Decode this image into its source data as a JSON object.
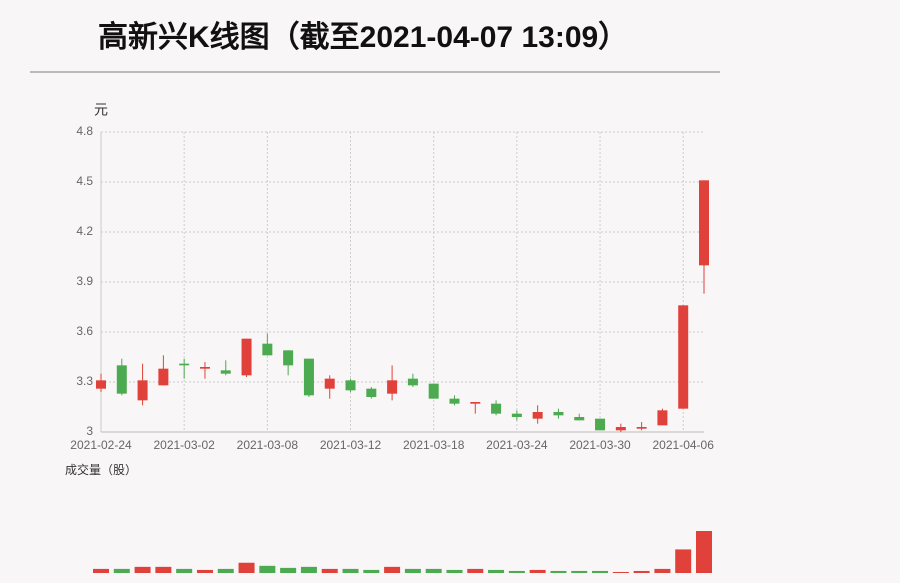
{
  "chart_data": {
    "type": "candlestick",
    "title": "高新兴K线图（截至2021-04-07 13:09）",
    "y_label": "元",
    "volume_label": "成交量（股）",
    "categories": [
      "2021-02-24",
      null,
      null,
      null,
      "2021-03-02",
      null,
      null,
      null,
      "2021-03-08",
      null,
      null,
      null,
      "2021-03-12",
      null,
      null,
      null,
      "2021-03-18",
      null,
      null,
      null,
      "2021-03-24",
      null,
      null,
      null,
      "2021-03-30",
      null,
      null,
      null,
      "2021-04-06",
      null
    ],
    "open": [
      3.26,
      3.4,
      3.19,
      3.28,
      3.41,
      3.38,
      3.37,
      3.34,
      3.53,
      3.49,
      3.44,
      3.26,
      3.31,
      3.26,
      3.23,
      3.32,
      3.29,
      3.2,
      3.17,
      3.17,
      3.11,
      3.08,
      3.12,
      3.09,
      3.08,
      3.01,
      3.02,
      3.04,
      3.14,
      4.0
    ],
    "high": [
      3.35,
      3.44,
      3.41,
      3.46,
      3.44,
      3.42,
      3.43,
      3.56,
      3.59,
      3.49,
      3.44,
      3.34,
      3.32,
      3.27,
      3.4,
      3.35,
      3.29,
      3.22,
      3.18,
      3.19,
      3.13,
      3.16,
      3.14,
      3.11,
      3.08,
      3.05,
      3.06,
      3.14,
      3.76,
      4.51
    ],
    "low": [
      3.24,
      3.22,
      3.16,
      3.28,
      3.32,
      3.32,
      3.34,
      3.33,
      3.46,
      3.34,
      3.21,
      3.2,
      3.24,
      3.2,
      3.19,
      3.27,
      3.2,
      3.16,
      3.11,
      3.1,
      3.07,
      3.05,
      3.08,
      3.07,
      3.01,
      3.0,
      3.01,
      3.04,
      3.14,
      3.83
    ],
    "close": [
      3.31,
      3.23,
      3.31,
      3.38,
      3.4,
      3.39,
      3.35,
      3.56,
      3.46,
      3.4,
      3.22,
      3.32,
      3.25,
      3.21,
      3.31,
      3.28,
      3.2,
      3.17,
      3.18,
      3.11,
      3.09,
      3.12,
      3.1,
      3.07,
      3.01,
      3.03,
      3.03,
      3.13,
      3.76,
      4.51
    ],
    "volume": [
      4,
      4,
      6,
      6,
      4,
      3,
      4,
      10,
      7,
      5,
      6,
      4,
      4,
      3,
      6,
      4,
      4,
      3,
      4,
      3,
      2,
      3,
      2,
      2,
      2,
      1,
      2,
      4,
      23,
      41
    ],
    "up_color": "#e0413a",
    "down_color": "#4caa50",
    "ylim": [
      3,
      4.8
    ],
    "yticks": [
      3,
      3.3,
      3.6,
      3.9,
      4.2,
      4.5,
      4.8
    ],
    "grid": true
  }
}
